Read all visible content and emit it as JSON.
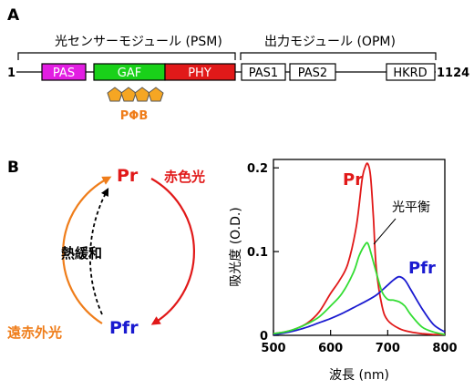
{
  "panelA": {
    "label": "A",
    "psm_label": "光センサーモジュール (PSM)",
    "opm_label": "出力モジュール (OPM)",
    "start_residue": "1",
    "end_residue": "1124",
    "domains": [
      {
        "name": "PAS",
        "color": "#e21ee2"
      },
      {
        "name": "GAF",
        "color": "#19d119"
      },
      {
        "name": "PHY",
        "color": "#e11919"
      },
      {
        "name": "PAS1",
        "color": "#ffffff"
      },
      {
        "name": "PAS2",
        "color": "#ffffff"
      },
      {
        "name": "HKRD",
        "color": "#ffffff"
      }
    ],
    "chromophore": {
      "label": "PΦB",
      "color": "#f5a623"
    }
  },
  "panelB": {
    "label": "B",
    "pr": "Pr",
    "pfr": "Pfr",
    "red_light": "赤色光",
    "far_red_light": "遠赤外光",
    "thermal": "熱緩和",
    "colors": {
      "red": "#e11919",
      "orange": "#ef7d1a",
      "blue": "#1a1ad0",
      "green": "#33dd33"
    }
  },
  "chart_data": {
    "type": "line",
    "xlabel": "波長 (nm)",
    "ylabel": "吸光度 (O.D.)",
    "xlim": [
      500,
      800
    ],
    "ylim": [
      0,
      0.21
    ],
    "xticks": [
      500,
      600,
      700,
      800
    ],
    "yticks": [
      0,
      0.1,
      0.2
    ],
    "grid": false,
    "series": [
      {
        "name": "Pr",
        "color": "#e11919",
        "x": [
          500,
          520,
          540,
          560,
          580,
          600,
          615,
          630,
          645,
          655,
          660,
          665,
          670,
          675,
          680,
          690,
          700,
          720,
          740,
          760,
          780,
          800
        ],
        "y": [
          0.002,
          0.004,
          0.008,
          0.015,
          0.028,
          0.05,
          0.065,
          0.085,
          0.13,
          0.185,
          0.2,
          0.205,
          0.19,
          0.14,
          0.08,
          0.035,
          0.018,
          0.008,
          0.004,
          0.002,
          0.001,
          0.001
        ]
      },
      {
        "name": "Pfr",
        "color": "#1a1ad0",
        "x": [
          500,
          520,
          540,
          560,
          580,
          600,
          620,
          640,
          660,
          680,
          700,
          710,
          720,
          730,
          740,
          760,
          780,
          800
        ],
        "y": [
          0.001,
          0.003,
          0.006,
          0.01,
          0.015,
          0.02,
          0.026,
          0.033,
          0.04,
          0.048,
          0.06,
          0.066,
          0.07,
          0.066,
          0.055,
          0.032,
          0.013,
          0.004
        ]
      },
      {
        "name": "光平衡",
        "color": "#33dd33",
        "x": [
          500,
          520,
          540,
          560,
          580,
          600,
          620,
          640,
          650,
          660,
          665,
          670,
          680,
          690,
          700,
          710,
          720,
          730,
          740,
          760,
          780,
          800
        ],
        "y": [
          0.002,
          0.004,
          0.008,
          0.014,
          0.022,
          0.035,
          0.05,
          0.075,
          0.095,
          0.108,
          0.11,
          0.1,
          0.075,
          0.052,
          0.043,
          0.042,
          0.04,
          0.035,
          0.025,
          0.01,
          0.004,
          0.001
        ]
      }
    ]
  }
}
